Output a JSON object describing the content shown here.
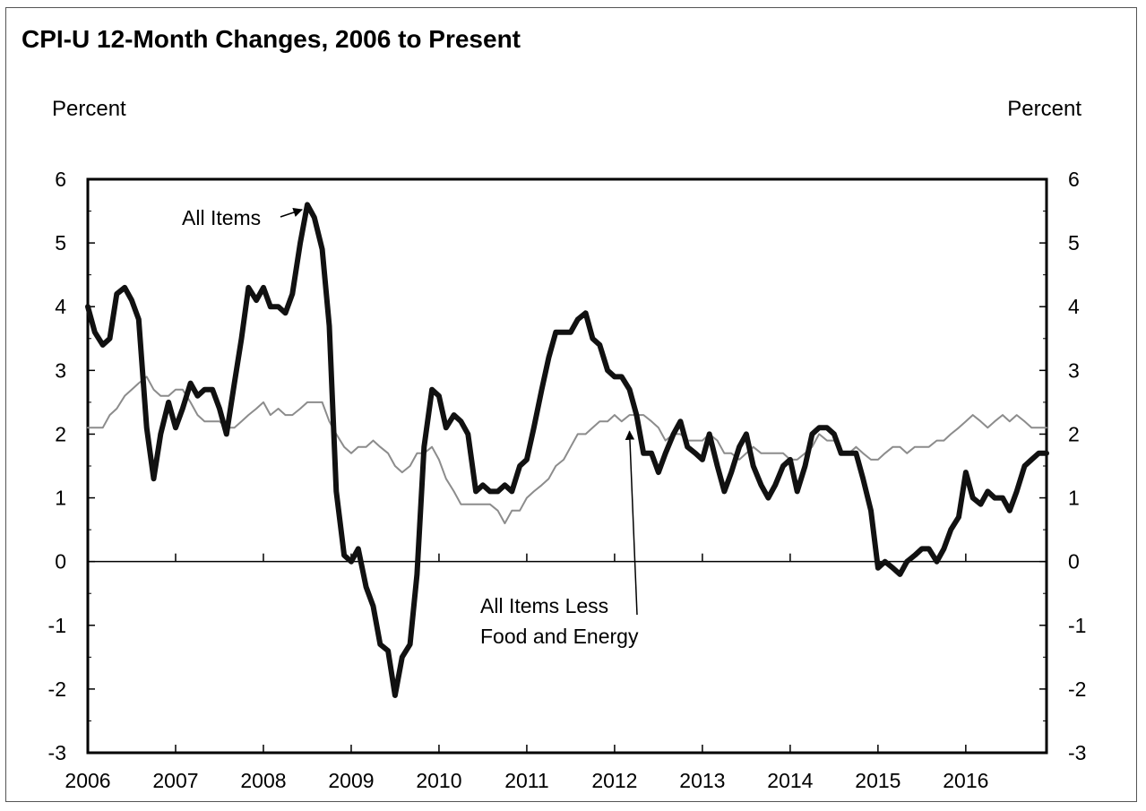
{
  "chart_data": {
    "type": "line",
    "title": "CPI-U 12-Month Changes, 2006 to Present",
    "ylabel_left": "Percent",
    "ylabel_right": "Percent",
    "xlim": [
      2006.0,
      2016.92
    ],
    "ylim": [
      -3,
      6
    ],
    "yticks": [
      "6",
      "5",
      "4",
      "3",
      "2",
      "1",
      "0",
      "-1",
      "-2",
      "-3"
    ],
    "xticks": [
      "2006",
      "2007",
      "2008",
      "2009",
      "2010",
      "2011",
      "2012",
      "2013",
      "2014",
      "2015",
      "2016"
    ],
    "zero_line": true,
    "grid": false,
    "series": [
      {
        "name": "All Items",
        "color": "#111111",
        "x": [
          2006.0,
          2006.08,
          2006.17,
          2006.25,
          2006.33,
          2006.42,
          2006.5,
          2006.58,
          2006.67,
          2006.75,
          2006.83,
          2006.92,
          2007.0,
          2007.08,
          2007.17,
          2007.25,
          2007.33,
          2007.42,
          2007.5,
          2007.58,
          2007.67,
          2007.75,
          2007.83,
          2007.92,
          2008.0,
          2008.08,
          2008.17,
          2008.25,
          2008.33,
          2008.42,
          2008.5,
          2008.58,
          2008.67,
          2008.75,
          2008.83,
          2008.92,
          2009.0,
          2009.08,
          2009.17,
          2009.25,
          2009.33,
          2009.42,
          2009.5,
          2009.58,
          2009.67,
          2009.75,
          2009.83,
          2009.92,
          2010.0,
          2010.08,
          2010.17,
          2010.25,
          2010.33,
          2010.42,
          2010.5,
          2010.58,
          2010.67,
          2010.75,
          2010.83,
          2010.92,
          2011.0,
          2011.08,
          2011.17,
          2011.25,
          2011.33,
          2011.42,
          2011.5,
          2011.58,
          2011.67,
          2011.75,
          2011.83,
          2011.92,
          2012.0,
          2012.08,
          2012.17,
          2012.25,
          2012.33,
          2012.42,
          2012.5,
          2012.58,
          2012.67,
          2012.75,
          2012.83,
          2012.92,
          2013.0,
          2013.08,
          2013.17,
          2013.25,
          2013.33,
          2013.42,
          2013.5,
          2013.58,
          2013.67,
          2013.75,
          2013.83,
          2013.92,
          2014.0,
          2014.08,
          2014.17,
          2014.25,
          2014.33,
          2014.42,
          2014.5,
          2014.58,
          2014.67,
          2014.75,
          2014.83,
          2014.92,
          2015.0,
          2015.08,
          2015.17,
          2015.25,
          2015.33,
          2015.42,
          2015.5,
          2015.58,
          2015.67,
          2015.75,
          2015.83,
          2015.92,
          2016.0,
          2016.08,
          2016.17,
          2016.25,
          2016.33,
          2016.42,
          2016.5,
          2016.58,
          2016.67,
          2016.75,
          2016.83,
          2016.92
        ],
        "values": [
          4.0,
          3.6,
          3.4,
          3.5,
          4.2,
          4.3,
          4.1,
          3.8,
          2.1,
          1.3,
          2.0,
          2.5,
          2.1,
          2.4,
          2.8,
          2.6,
          2.7,
          2.7,
          2.4,
          2.0,
          2.8,
          3.5,
          4.3,
          4.1,
          4.3,
          4.0,
          4.0,
          3.9,
          4.2,
          5.0,
          5.6,
          5.4,
          4.9,
          3.7,
          1.1,
          0.1,
          0.0,
          0.2,
          -0.4,
          -0.7,
          -1.3,
          -1.4,
          -2.1,
          -1.5,
          -1.3,
          -0.2,
          1.8,
          2.7,
          2.6,
          2.1,
          2.3,
          2.2,
          2.0,
          1.1,
          1.2,
          1.1,
          1.1,
          1.2,
          1.1,
          1.5,
          1.6,
          2.1,
          2.7,
          3.2,
          3.6,
          3.6,
          3.6,
          3.8,
          3.9,
          3.5,
          3.4,
          3.0,
          2.9,
          2.9,
          2.7,
          2.3,
          1.7,
          1.7,
          1.4,
          1.7,
          2.0,
          2.2,
          1.8,
          1.7,
          1.6,
          2.0,
          1.5,
          1.1,
          1.4,
          1.8,
          2.0,
          1.5,
          1.2,
          1.0,
          1.2,
          1.5,
          1.6,
          1.1,
          1.5,
          2.0,
          2.1,
          2.1,
          2.0,
          1.7,
          1.7,
          1.7,
          1.3,
          0.8,
          -0.1,
          0.0,
          -0.1,
          -0.2,
          0.0,
          0.1,
          0.2,
          0.2,
          0.0,
          0.2,
          0.5,
          0.7,
          1.4,
          1.0,
          0.9,
          1.1,
          1.0,
          1.0,
          0.8,
          1.1,
          1.5,
          1.6,
          1.7,
          1.7
        ]
      },
      {
        "name": "All Items Less Food and Energy",
        "color": "#8c8c8c",
        "x": [
          2006.0,
          2006.08,
          2006.17,
          2006.25,
          2006.33,
          2006.42,
          2006.5,
          2006.58,
          2006.67,
          2006.75,
          2006.83,
          2006.92,
          2007.0,
          2007.08,
          2007.17,
          2007.25,
          2007.33,
          2007.42,
          2007.5,
          2007.58,
          2007.67,
          2007.75,
          2007.83,
          2007.92,
          2008.0,
          2008.08,
          2008.17,
          2008.25,
          2008.33,
          2008.42,
          2008.5,
          2008.58,
          2008.67,
          2008.75,
          2008.83,
          2008.92,
          2009.0,
          2009.08,
          2009.17,
          2009.25,
          2009.33,
          2009.42,
          2009.5,
          2009.58,
          2009.67,
          2009.75,
          2009.83,
          2009.92,
          2010.0,
          2010.08,
          2010.17,
          2010.25,
          2010.33,
          2010.42,
          2010.5,
          2010.58,
          2010.67,
          2010.75,
          2010.83,
          2010.92,
          2011.0,
          2011.08,
          2011.17,
          2011.25,
          2011.33,
          2011.42,
          2011.5,
          2011.58,
          2011.67,
          2011.75,
          2011.83,
          2011.92,
          2012.0,
          2012.08,
          2012.17,
          2012.25,
          2012.33,
          2012.42,
          2012.5,
          2012.58,
          2012.67,
          2012.75,
          2012.83,
          2012.92,
          2013.0,
          2013.08,
          2013.17,
          2013.25,
          2013.33,
          2013.42,
          2013.5,
          2013.58,
          2013.67,
          2013.75,
          2013.83,
          2013.92,
          2014.0,
          2014.08,
          2014.17,
          2014.25,
          2014.33,
          2014.42,
          2014.5,
          2014.58,
          2014.67,
          2014.75,
          2014.83,
          2014.92,
          2015.0,
          2015.08,
          2015.17,
          2015.25,
          2015.33,
          2015.42,
          2015.5,
          2015.58,
          2015.67,
          2015.75,
          2015.83,
          2015.92,
          2016.0,
          2016.08,
          2016.17,
          2016.25,
          2016.33,
          2016.42,
          2016.5,
          2016.58,
          2016.67,
          2016.75,
          2016.83,
          2016.92
        ],
        "values": [
          2.1,
          2.1,
          2.1,
          2.3,
          2.4,
          2.6,
          2.7,
          2.8,
          2.9,
          2.7,
          2.6,
          2.6,
          2.7,
          2.7,
          2.5,
          2.3,
          2.2,
          2.2,
          2.2,
          2.1,
          2.1,
          2.2,
          2.3,
          2.4,
          2.5,
          2.3,
          2.4,
          2.3,
          2.3,
          2.4,
          2.5,
          2.5,
          2.5,
          2.2,
          2.0,
          1.8,
          1.7,
          1.8,
          1.8,
          1.9,
          1.8,
          1.7,
          1.5,
          1.4,
          1.5,
          1.7,
          1.7,
          1.8,
          1.6,
          1.3,
          1.1,
          0.9,
          0.9,
          0.9,
          0.9,
          0.9,
          0.8,
          0.6,
          0.8,
          0.8,
          1.0,
          1.1,
          1.2,
          1.3,
          1.5,
          1.6,
          1.8,
          2.0,
          2.0,
          2.1,
          2.2,
          2.2,
          2.3,
          2.2,
          2.3,
          2.3,
          2.3,
          2.2,
          2.1,
          1.9,
          2.0,
          2.0,
          1.9,
          1.9,
          1.9,
          2.0,
          1.9,
          1.7,
          1.7,
          1.6,
          1.7,
          1.8,
          1.7,
          1.7,
          1.7,
          1.7,
          1.6,
          1.6,
          1.7,
          1.8,
          2.0,
          1.9,
          1.9,
          1.7,
          1.7,
          1.8,
          1.7,
          1.6,
          1.6,
          1.7,
          1.8,
          1.8,
          1.7,
          1.8,
          1.8,
          1.8,
          1.9,
          1.9,
          2.0,
          2.1,
          2.2,
          2.3,
          2.2,
          2.1,
          2.2,
          2.3,
          2.2,
          2.3,
          2.2,
          2.1,
          2.1,
          2.1
        ]
      }
    ],
    "annotations": [
      {
        "text": "All Items",
        "arrow_to": [
          2008.5,
          5.55
        ]
      },
      {
        "text_lines": [
          "All Items Less",
          "Food and Energy"
        ],
        "arrow_to": [
          2012.17,
          2.1
        ]
      }
    ]
  }
}
